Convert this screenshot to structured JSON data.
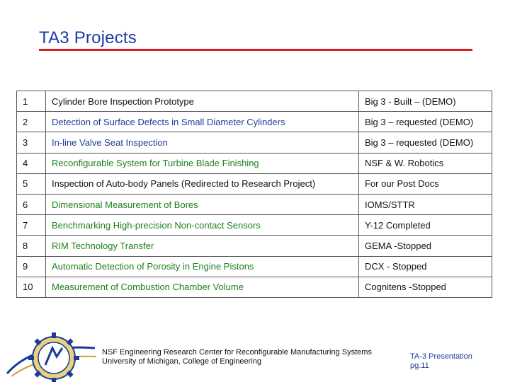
{
  "title": "TA3 Projects",
  "colors": {
    "title": "#1a3ca8",
    "rule": "#d62020",
    "name_blue": "#1c3a9c",
    "name_green": "#1e7f1a"
  },
  "projects": [
    {
      "num": "1",
      "name": "Cylinder Bore Inspection Prototype",
      "status": "Big 3 - Built – (DEMO)",
      "name_color": "black"
    },
    {
      "num": "2",
      "name": "Detection of Surface Defects in Small Diameter Cylinders",
      "status": "Big 3 – requested (DEMO)",
      "name_color": "blue"
    },
    {
      "num": "3",
      "name": "In-line Valve Seat Inspection",
      "status": "Big 3 – requested (DEMO)",
      "name_color": "blue"
    },
    {
      "num": "4",
      "name": "Reconfigurable System for Turbine Blade Finishing",
      "status": "NSF & W. Robotics",
      "name_color": "green"
    },
    {
      "num": "5",
      "name": "Inspection of Auto-body Panels (Redirected to Research Project)",
      "status": "For our Post Docs",
      "name_color": "black"
    },
    {
      "num": "6",
      "name": "Dimensional Measurement of Bores",
      "status": "IOMS/STTR",
      "name_color": "green"
    },
    {
      "num": "7",
      "name": "Benchmarking High-precision Non-contact Sensors",
      "status": "Y-12 Completed",
      "name_color": "green"
    },
    {
      "num": "8",
      "name": "RIM Technology Transfer",
      "status": "GEMA -Stopped",
      "name_color": "green"
    },
    {
      "num": "9",
      "name": "Automatic Detection of Porosity in Engine Pistons",
      "status": "DCX - Stopped",
      "name_color": "green"
    },
    {
      "num": "10",
      "name": "Measurement of Combustion Chamber Volume",
      "status": "Cognitens -Stopped",
      "name_color": "green"
    }
  ],
  "footer": {
    "center_line1": "NSF Engineering Research Center for Reconfigurable Manufacturing Systems",
    "center_line2": "University of Michigan, College of Engineering",
    "right_line1": "TA-3 Presentation",
    "right_line2": "pg.11"
  }
}
